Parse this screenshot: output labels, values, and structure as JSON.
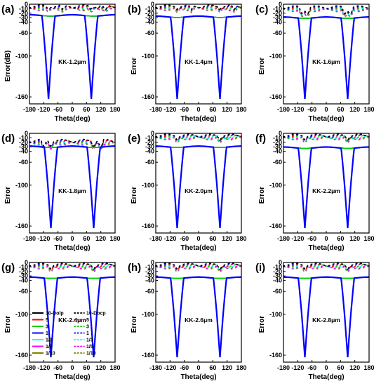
{
  "figure": {
    "series_colors": {
      "10": "#000000",
      "5": "#ff0000",
      "3": "#00cc00",
      "1": "#0000ff",
      "1/3": "#00ffff",
      "1/5": "#ff00ff",
      "1/10": "#808000"
    }
  },
  "chart_data": [
    {
      "type": "line",
      "panel": "(a)",
      "annotation": "KK-1.2μm",
      "xlabel": "Theta(deg)",
      "ylabel": "Error(dB)",
      "x_ticks": [
        "-180",
        "-120",
        "-60",
        "0",
        "60",
        "120",
        "180"
      ],
      "y_ticks": [
        "0",
        "-10",
        "-20",
        "-30",
        "-40",
        "-60",
        "-100",
        "-160"
      ],
      "xlim": [
        -180,
        180
      ],
      "ylim": [
        -170,
        0
      ],
      "dolp_series": {
        "baseline": -25,
        "notches": [
          {
            "center": -100,
            "min": -163
          },
          {
            "center": 80,
            "min": -163
          }
        ]
      },
      "docp_series": {
        "baseline": -8,
        "dips": [
          -100,
          -40,
          80,
          140
        ],
        "dip_depth": -15
      },
      "show_legend": false
    },
    {
      "type": "line",
      "panel": "(b)",
      "annotation": "KK-1.4μm",
      "xlabel": "Theta(deg)",
      "ylabel": "Error",
      "x_ticks": [
        "-180",
        "-120",
        "-60",
        "0",
        "60",
        "120",
        "180"
      ],
      "y_ticks": [
        "0",
        "-10",
        "-20",
        "-30",
        "-40",
        "-60",
        "-100",
        "-160"
      ],
      "xlim": [
        -180,
        180
      ],
      "ylim": [
        -170,
        0
      ],
      "dolp_series": {
        "baseline": -28,
        "notches": [
          {
            "center": -90,
            "min": -163
          },
          {
            "center": 90,
            "min": -163
          }
        ]
      },
      "docp_series": {
        "baseline": -8,
        "dips": [
          -90,
          -30,
          90,
          150
        ],
        "dip_depth": -15
      },
      "show_legend": false
    },
    {
      "type": "line",
      "panel": "(c)",
      "annotation": "KK-1.6μm",
      "xlabel": "Theta(deg)",
      "ylabel": "Error",
      "x_ticks": [
        "-180",
        "-120",
        "-60",
        "0",
        "60",
        "120",
        "180"
      ],
      "y_ticks": [
        "0",
        "-10",
        "-20",
        "-30",
        "-40",
        "-60",
        "-100",
        "-160"
      ],
      "xlim": [
        -180,
        180
      ],
      "ylim": [
        -170,
        0
      ],
      "dolp_series": {
        "baseline": -30,
        "notches": [
          {
            "center": -90,
            "min": -163
          },
          {
            "center": 90,
            "min": -163
          }
        ]
      },
      "docp_series": {
        "baseline": -10,
        "dips": [
          -100,
          -80,
          80,
          100
        ],
        "dip_depth": -25
      },
      "show_legend": false
    },
    {
      "type": "line",
      "panel": "(d)",
      "annotation": "KK-1.8μm",
      "xlabel": "Theta(deg)",
      "ylabel": "Error",
      "x_ticks": [
        "-180",
        "-120",
        "-60",
        "0",
        "60",
        "120",
        "180"
      ],
      "y_ticks": [
        "0",
        "-10",
        "-20",
        "-30",
        "-40",
        "-60",
        "-100",
        "-160"
      ],
      "xlim": [
        -180,
        180
      ],
      "ylim": [
        -170,
        0
      ],
      "dolp_series": {
        "baseline": -30,
        "notches": [
          {
            "center": -90,
            "min": -163
          },
          {
            "center": 90,
            "min": -163
          }
        ]
      },
      "docp_series": {
        "baseline": -20,
        "dips": [
          -120,
          -90,
          90,
          120
        ],
        "dip_depth": -32
      },
      "show_legend": false
    },
    {
      "type": "line",
      "panel": "(e)",
      "annotation": "KK-2.0μm",
      "xlabel": "Theta(deg)",
      "ylabel": "Error",
      "x_ticks": [
        "-180",
        "-120",
        "-60",
        "0",
        "60",
        "120",
        "180"
      ],
      "y_ticks": [
        "0",
        "-10",
        "-20",
        "-30",
        "-40",
        "-60",
        "-100",
        "-160"
      ],
      "xlim": [
        -180,
        180
      ],
      "ylim": [
        -170,
        0
      ],
      "dolp_series": {
        "baseline": -30,
        "notches": [
          {
            "center": -90,
            "min": -163
          },
          {
            "center": 90,
            "min": -163
          }
        ]
      },
      "docp_series": {
        "baseline": -8,
        "dips": [
          -90,
          90
        ],
        "dip_depth": -18
      },
      "show_legend": false
    },
    {
      "type": "line",
      "panel": "(f)",
      "annotation": "KK-2.2μm",
      "xlabel": "Theta(deg)",
      "ylabel": "Error",
      "x_ticks": [
        "-180",
        "-120",
        "-60",
        "0",
        "60",
        "120",
        "180"
      ],
      "y_ticks": [
        "0",
        "-10",
        "-20",
        "-30",
        "-40",
        "-60",
        "-100",
        "-160"
      ],
      "xlim": [
        -180,
        180
      ],
      "ylim": [
        -170,
        0
      ],
      "dolp_series": {
        "baseline": -32,
        "notches": [
          {
            "center": -90,
            "min": -163
          },
          {
            "center": 90,
            "min": -163
          }
        ]
      },
      "docp_series": {
        "baseline": -8,
        "dips": [
          -90,
          90
        ],
        "dip_depth": -18
      },
      "show_legend": false
    },
    {
      "type": "line",
      "panel": "(g)",
      "annotation": "KK-2.4μm",
      "xlabel": "Theta(deg)",
      "ylabel": "Error",
      "x_ticks": [
        "-180",
        "-120",
        "-60",
        "0",
        "60",
        "120",
        "180"
      ],
      "y_ticks": [
        "0",
        "-10",
        "-20",
        "-30",
        "-40",
        "-60",
        "-100",
        "-160"
      ],
      "xlim": [
        -180,
        180
      ],
      "ylim": [
        -170,
        0
      ],
      "dolp_series": {
        "baseline": -34,
        "notches": [
          {
            "center": -90,
            "min": -163
          },
          {
            "center": 90,
            "min": -163
          }
        ]
      },
      "docp_series": {
        "baseline": -8,
        "dips": [
          -90,
          90
        ],
        "dip_depth": -18
      },
      "show_legend": true,
      "legend": {
        "left": [
          "10-Dolp",
          "5",
          "3",
          "1",
          "1/3",
          "1/5",
          "1/10"
        ],
        "right": [
          "10-Docp",
          "5",
          "3",
          "1",
          "1/3",
          "1/5",
          "1/10"
        ],
        "keys": [
          "10",
          "5",
          "3",
          "1",
          "1/3",
          "1/5",
          "1/10"
        ]
      }
    },
    {
      "type": "line",
      "panel": "(h)",
      "annotation": "KK-2.6μm",
      "xlabel": "Theta(deg)",
      "ylabel": "Error",
      "x_ticks": [
        "-180",
        "-120",
        "-60",
        "0",
        "60",
        "120",
        "180"
      ],
      "y_ticks": [
        "0",
        "-10",
        "-20",
        "-30",
        "-40",
        "-60",
        "-100",
        "-160"
      ],
      "xlim": [
        -180,
        180
      ],
      "ylim": [
        -170,
        0
      ],
      "dolp_series": {
        "baseline": -34,
        "notches": [
          {
            "center": -90,
            "min": -163
          },
          {
            "center": 90,
            "min": -163
          }
        ]
      },
      "docp_series": {
        "baseline": -8,
        "dips": [
          -90,
          90
        ],
        "dip_depth": -18
      },
      "show_legend": false
    },
    {
      "type": "line",
      "panel": "(i)",
      "annotation": "KK-2.8μm",
      "xlabel": "Theta(deg)",
      "ylabel": "Error",
      "x_ticks": [
        "-180",
        "-120",
        "-60",
        "0",
        "60",
        "120",
        "180"
      ],
      "y_ticks": [
        "0",
        "-10",
        "-20",
        "-30",
        "-40",
        "-60",
        "-100",
        "-160"
      ],
      "xlim": [
        -180,
        180
      ],
      "ylim": [
        -170,
        0
      ],
      "dolp_series": {
        "baseline": -34,
        "notches": [
          {
            "center": -90,
            "min": -163
          },
          {
            "center": 90,
            "min": -163
          }
        ]
      },
      "docp_series": {
        "baseline": -8,
        "dips": [
          -90,
          90
        ],
        "dip_depth": -18
      },
      "show_legend": false
    }
  ]
}
